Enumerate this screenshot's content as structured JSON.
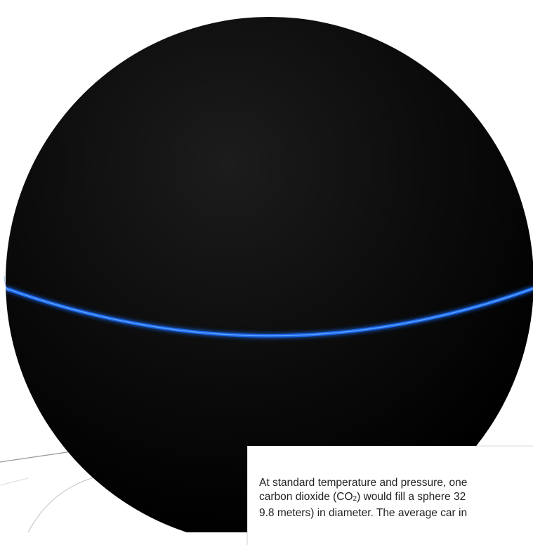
{
  "colors": {
    "background": "#ffffff",
    "sphere": "#0b0b0b",
    "equator_glow": "#1e6fff",
    "ground_lines": "#9a9a9a",
    "caption_text": "#222222"
  },
  "caption": {
    "line1": "At standard temperature and pressure, one",
    "line2_before": "carbon dioxide (CO",
    "line2_sub": "2",
    "line2_after": ") would fill a sphere 32",
    "line3": "9.8 meters) in diameter. The average car in"
  }
}
